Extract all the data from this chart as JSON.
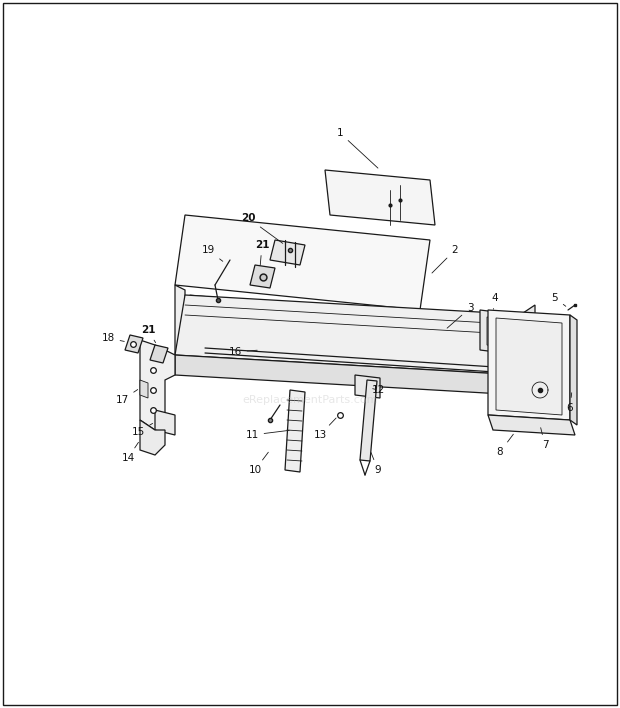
{
  "bg_color": "#ffffff",
  "line_color": "#1a1a1a",
  "label_color": "#111111",
  "watermark": "eReplacementParts.com",
  "watermark_alpha": 0.35,
  "fig_width": 6.2,
  "fig_height": 7.08,
  "lw": 0.9,
  "lw_thin": 0.6,
  "border_lw": 1.0
}
